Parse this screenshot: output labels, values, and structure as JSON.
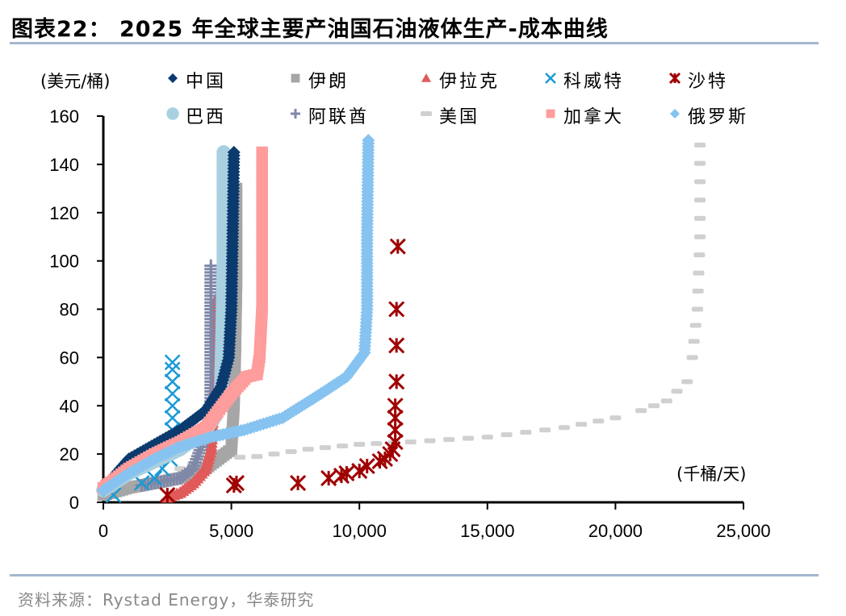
{
  "header": {
    "title": "图表22：  2025 年全球主要产油国石油液体生产-成本曲线"
  },
  "footer": {
    "source": "资料来源：Rystad Energy，华泰研究"
  },
  "chart_data": {
    "type": "scatter",
    "title": "2025 年全球主要产油国石油液体生产-成本曲线",
    "xlabel": "(千桶/天)",
    "ylabel": "(美元/桶)",
    "xlim": [
      0,
      25000
    ],
    "ylim": [
      0,
      160
    ],
    "xticks": [
      "0",
      "5,000",
      "10,000",
      "15,000",
      "20,000",
      "25,000"
    ],
    "yticks": [
      "0",
      "20",
      "40",
      "60",
      "80",
      "100",
      "120",
      "140",
      "160"
    ],
    "grid": false,
    "legend": "top",
    "series": [
      {
        "name": "中国",
        "marker": "diamond",
        "color": "#0b3a6e",
        "points": [
          [
            0,
            5
          ],
          [
            500,
            12
          ],
          [
            1000,
            18
          ],
          [
            2000,
            24
          ],
          [
            3000,
            30
          ],
          [
            4000,
            38
          ],
          [
            4600,
            48
          ],
          [
            4900,
            60
          ],
          [
            5000,
            80
          ],
          [
            5050,
            110
          ],
          [
            5100,
            145
          ]
        ]
      },
      {
        "name": "伊朗",
        "marker": "square",
        "color": "#a6a6a6",
        "points": [
          [
            0,
            3
          ],
          [
            1000,
            6
          ],
          [
            2000,
            8
          ],
          [
            3000,
            10
          ],
          [
            4000,
            14
          ],
          [
            4500,
            18
          ],
          [
            5000,
            22
          ],
          [
            5100,
            40
          ],
          [
            5150,
            60
          ],
          [
            5200,
            90
          ],
          [
            5200,
            130
          ]
        ]
      },
      {
        "name": "伊拉克",
        "marker": "triangle",
        "color": "#e05a5a",
        "points": [
          [
            2500,
            2
          ],
          [
            3000,
            4
          ],
          [
            3500,
            8
          ],
          [
            4000,
            14
          ],
          [
            4200,
            22
          ],
          [
            4300,
            40
          ],
          [
            4400,
            60
          ],
          [
            4450,
            85
          ]
        ]
      },
      {
        "name": "科威特",
        "marker": "x",
        "color": "#1a9ad6",
        "points": [
          [
            400,
            3
          ],
          [
            1500,
            8
          ],
          [
            2000,
            10
          ],
          [
            2300,
            14
          ],
          [
            2600,
            18
          ],
          [
            2700,
            30
          ],
          [
            2700,
            35
          ],
          [
            2700,
            40
          ],
          [
            2700,
            45
          ],
          [
            2700,
            50
          ],
          [
            2700,
            55
          ],
          [
            2700,
            58
          ]
        ]
      },
      {
        "name": "沙特",
        "marker": "asterisk",
        "color": "#a00000",
        "points": [
          [
            2500,
            3
          ],
          [
            5100,
            7
          ],
          [
            5200,
            8
          ],
          [
            7600,
            8
          ],
          [
            8800,
            10
          ],
          [
            9300,
            11
          ],
          [
            9500,
            12
          ],
          [
            10000,
            13
          ],
          [
            10300,
            15
          ],
          [
            10800,
            17
          ],
          [
            11000,
            18
          ],
          [
            11200,
            20
          ],
          [
            11300,
            22
          ],
          [
            11400,
            25
          ],
          [
            11400,
            30
          ],
          [
            11400,
            35
          ],
          [
            11400,
            40
          ],
          [
            11450,
            50
          ],
          [
            11450,
            65
          ],
          [
            11450,
            80
          ],
          [
            11500,
            106
          ]
        ]
      },
      {
        "name": "巴西",
        "marker": "circle",
        "color": "#a8d0e0",
        "points": [
          [
            0,
            5
          ],
          [
            1000,
            12
          ],
          [
            2000,
            17
          ],
          [
            3000,
            22
          ],
          [
            4000,
            30
          ],
          [
            4400,
            36
          ],
          [
            4600,
            48
          ],
          [
            4650,
            70
          ],
          [
            4700,
            100
          ],
          [
            4700,
            145
          ]
        ]
      },
      {
        "name": "阿联酋",
        "marker": "plus",
        "color": "#8088a8",
        "points": [
          [
            1500,
            7
          ],
          [
            2000,
            8
          ],
          [
            3000,
            10
          ],
          [
            3500,
            14
          ],
          [
            4000,
            28
          ],
          [
            4200,
            35
          ],
          [
            4200,
            50
          ],
          [
            4200,
            65
          ],
          [
            4200,
            80
          ],
          [
            4200,
            98
          ]
        ]
      },
      {
        "name": "美国",
        "marker": "dash",
        "color": "#d0d0d0",
        "points": [
          [
            1000,
            5
          ],
          [
            2500,
            10
          ],
          [
            3000,
            14
          ],
          [
            4000,
            18
          ],
          [
            6000,
            19
          ],
          [
            8000,
            22
          ],
          [
            10000,
            24
          ],
          [
            12000,
            25
          ],
          [
            15000,
            27
          ],
          [
            18000,
            31
          ],
          [
            20000,
            35
          ],
          [
            21000,
            38
          ],
          [
            22000,
            42
          ],
          [
            22800,
            50
          ],
          [
            23000,
            60
          ],
          [
            23200,
            80
          ],
          [
            23300,
            110
          ],
          [
            23300,
            148
          ]
        ]
      },
      {
        "name": "加拿大",
        "marker": "square",
        "color": "#ff9c9c",
        "points": [
          [
            0,
            6
          ],
          [
            1000,
            14
          ],
          [
            2000,
            20
          ],
          [
            3000,
            25
          ],
          [
            4000,
            31
          ],
          [
            5000,
            45
          ],
          [
            5600,
            52
          ],
          [
            6000,
            53
          ],
          [
            6100,
            60
          ],
          [
            6200,
            80
          ],
          [
            6200,
            110
          ],
          [
            6200,
            145
          ]
        ]
      },
      {
        "name": "俄罗斯",
        "marker": "diamond",
        "color": "#86c3f0",
        "points": [
          [
            0,
            5
          ],
          [
            1000,
            12
          ],
          [
            2000,
            18
          ],
          [
            3000,
            23
          ],
          [
            4200,
            27
          ],
          [
            5500,
            30
          ],
          [
            7000,
            35
          ],
          [
            8500,
            45
          ],
          [
            9500,
            52
          ],
          [
            10200,
            62
          ],
          [
            10300,
            80
          ],
          [
            10300,
            110
          ],
          [
            10350,
            150
          ]
        ]
      }
    ]
  }
}
